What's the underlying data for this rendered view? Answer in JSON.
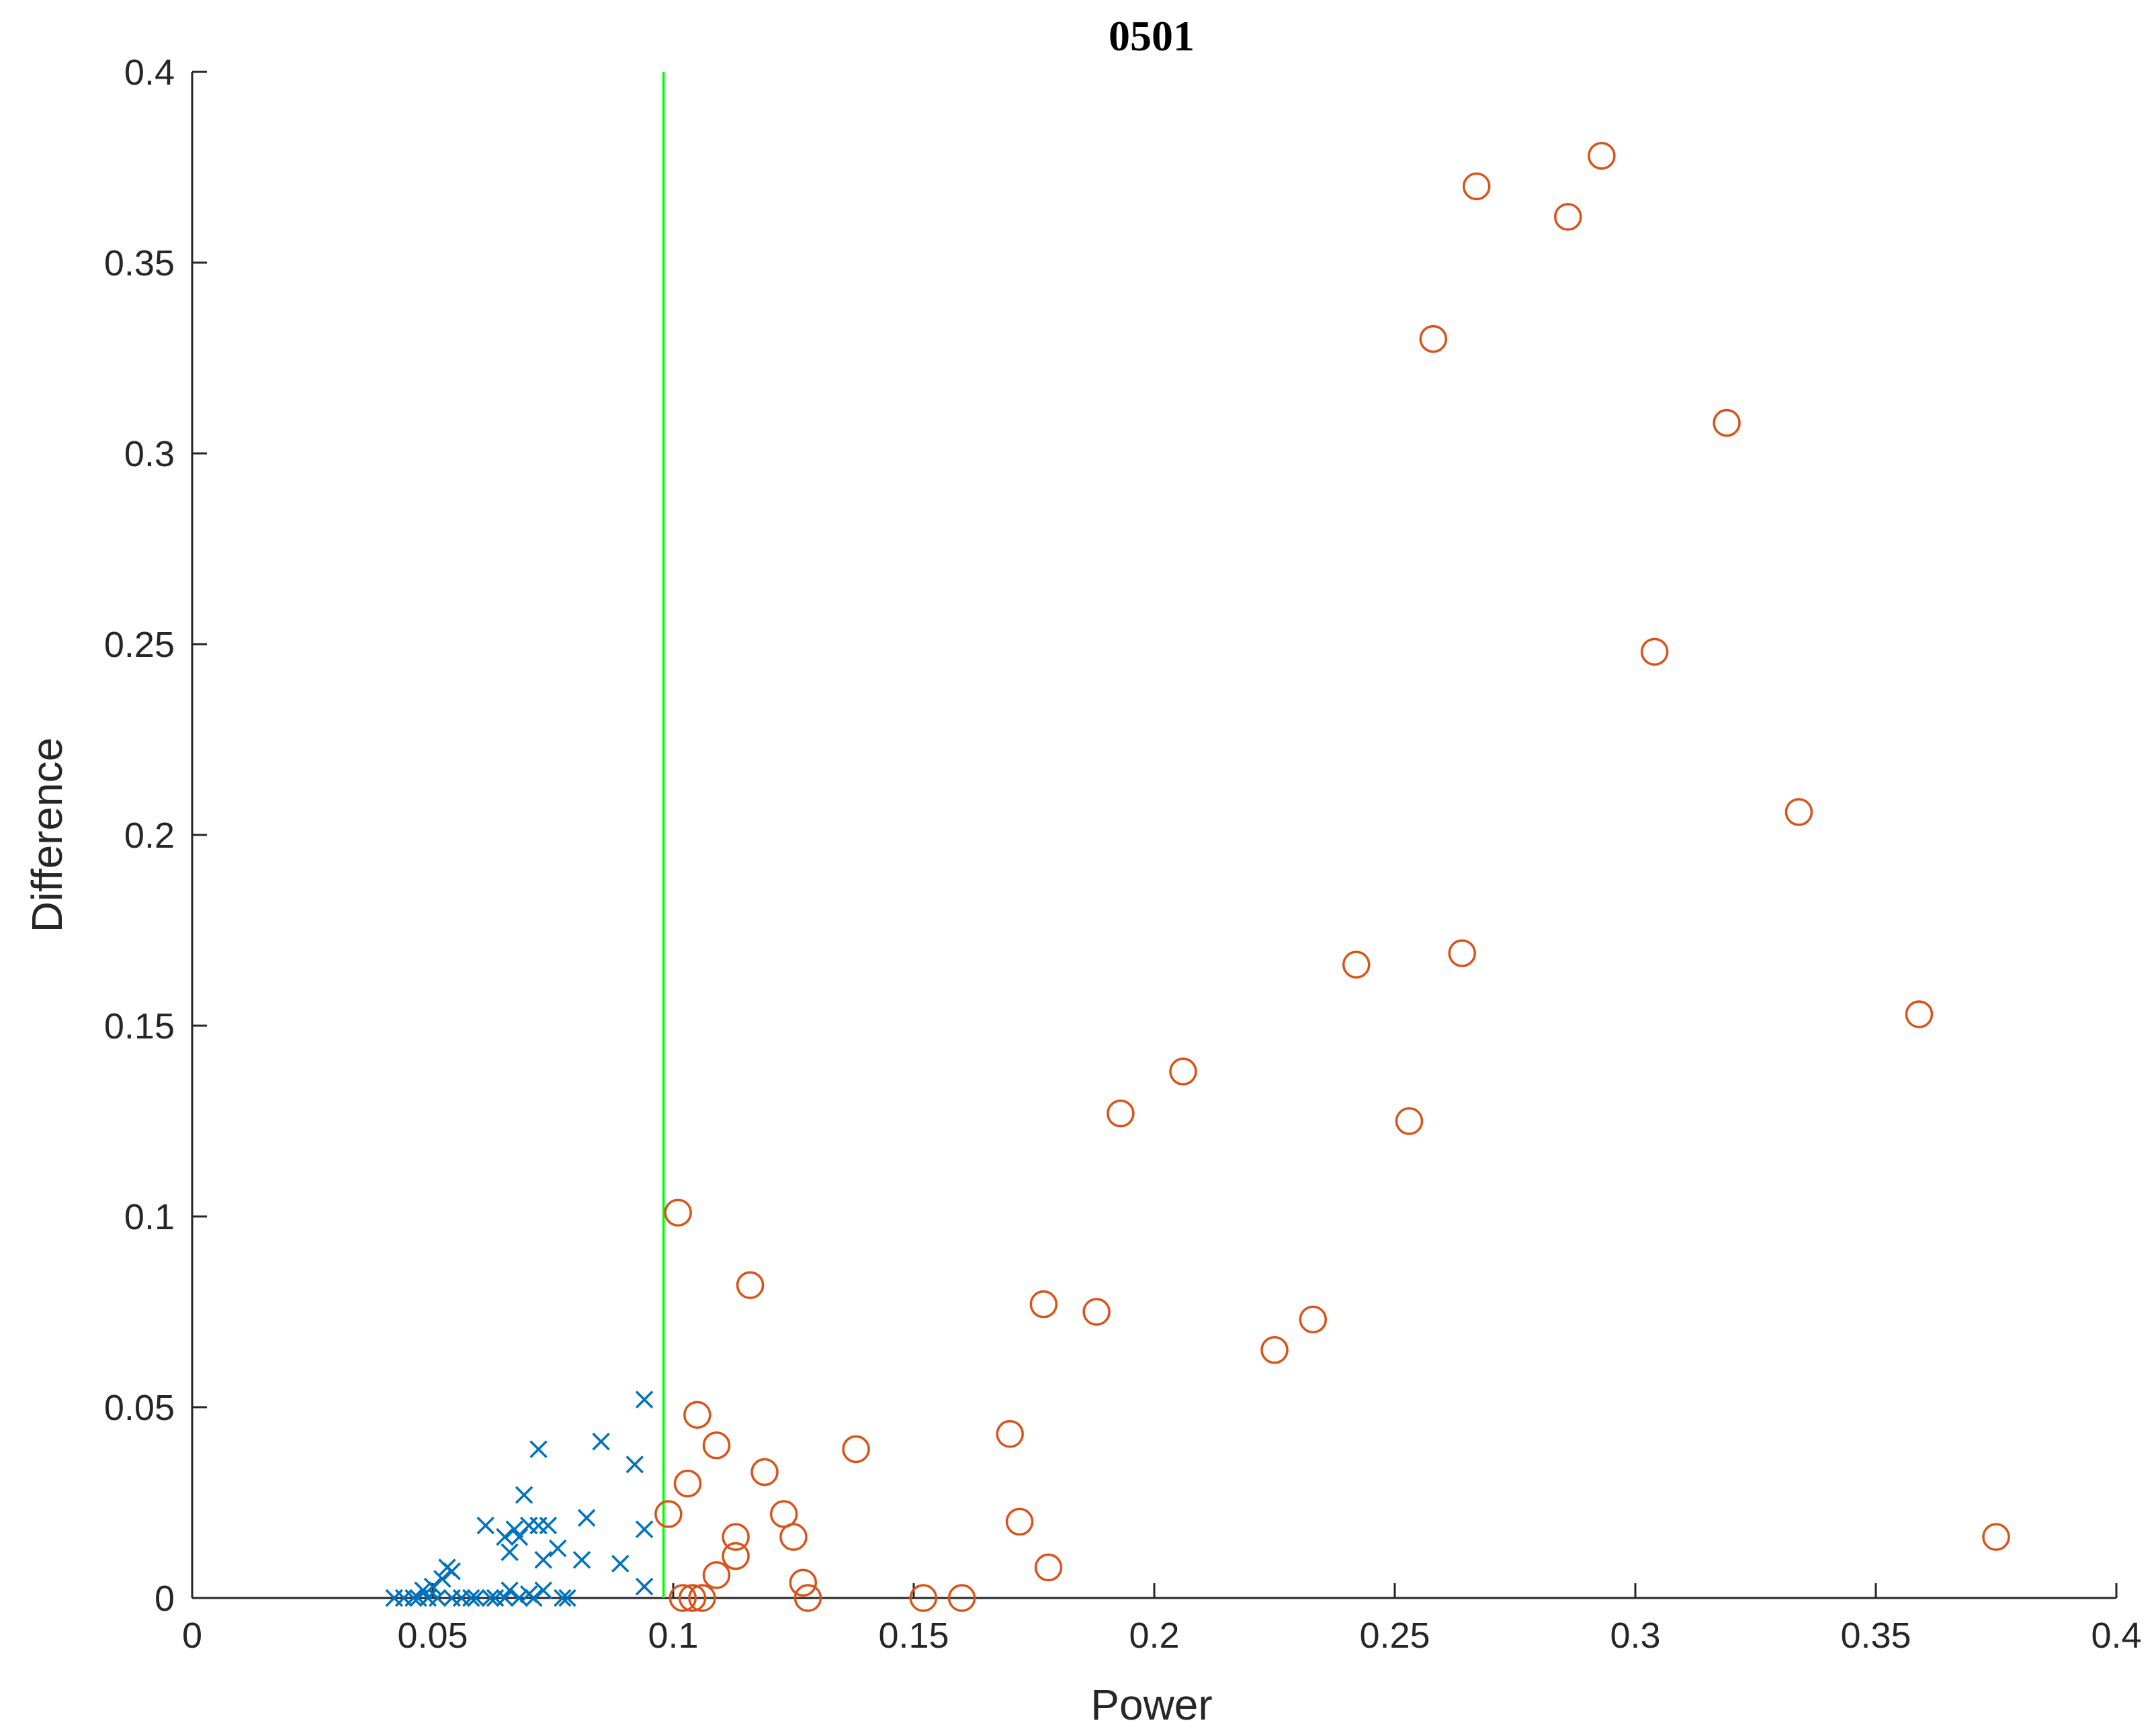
{
  "colors": {
    "axes": "#262626",
    "circle_series": "#D95319",
    "cross_series": "#0072BD",
    "threshold_line": "#00FF00",
    "background": "#FFFFFF"
  },
  "chart_data": {
    "type": "scatter",
    "title": "0501",
    "xlabel": "Power",
    "ylabel": "Difference",
    "xlim": [
      0,
      0.4
    ],
    "ylim": [
      0,
      0.4
    ],
    "xticks": [
      "0",
      "0.05",
      "0.1",
      "0.15",
      "0.2",
      "0.25",
      "0.3",
      "0.35",
      "0.4"
    ],
    "yticks": [
      "0",
      "0.05",
      "0.1",
      "0.15",
      "0.2",
      "0.25",
      "0.3",
      "0.35",
      "0.4"
    ],
    "grid": false,
    "legend": "none",
    "vline": {
      "x": 0.098,
      "color": "#00FF00"
    },
    "series": [
      {
        "marker": "circle",
        "color": "#D95319",
        "points": [
          [
            0.293,
            0.378
          ],
          [
            0.267,
            0.37
          ],
          [
            0.286,
            0.362
          ],
          [
            0.258,
            0.33
          ],
          [
            0.319,
            0.308
          ],
          [
            0.304,
            0.248
          ],
          [
            0.334,
            0.206
          ],
          [
            0.264,
            0.169
          ],
          [
            0.242,
            0.166
          ],
          [
            0.359,
            0.153
          ],
          [
            0.206,
            0.138
          ],
          [
            0.193,
            0.127
          ],
          [
            0.253,
            0.125
          ],
          [
            0.101,
            0.101
          ],
          [
            0.116,
            0.082
          ],
          [
            0.177,
            0.077
          ],
          [
            0.188,
            0.075
          ],
          [
            0.233,
            0.073
          ],
          [
            0.225,
            0.065
          ],
          [
            0.105,
            0.048
          ],
          [
            0.17,
            0.043
          ],
          [
            0.109,
            0.04
          ],
          [
            0.138,
            0.039
          ],
          [
            0.119,
            0.033
          ],
          [
            0.103,
            0.03
          ],
          [
            0.099,
            0.022
          ],
          [
            0.123,
            0.022
          ],
          [
            0.172,
            0.02
          ],
          [
            0.113,
            0.016
          ],
          [
            0.125,
            0.016
          ],
          [
            0.375,
            0.016
          ],
          [
            0.113,
            0.011
          ],
          [
            0.178,
            0.008
          ],
          [
            0.109,
            0.006
          ],
          [
            0.127,
            0.004
          ],
          [
            0.102,
            0.0
          ],
          [
            0.104,
            0.0
          ],
          [
            0.106,
            0.0
          ],
          [
            0.128,
            0.0
          ],
          [
            0.152,
            0.0
          ],
          [
            0.16,
            0.0
          ]
        ]
      },
      {
        "marker": "cross",
        "color": "#0072BD",
        "points": [
          [
            0.094,
            0.052
          ],
          [
            0.085,
            0.041
          ],
          [
            0.072,
            0.039
          ],
          [
            0.092,
            0.035
          ],
          [
            0.069,
            0.027
          ],
          [
            0.082,
            0.021
          ],
          [
            0.061,
            0.019
          ],
          [
            0.07,
            0.019
          ],
          [
            0.072,
            0.019
          ],
          [
            0.074,
            0.019
          ],
          [
            0.067,
            0.018
          ],
          [
            0.094,
            0.018
          ],
          [
            0.065,
            0.016
          ],
          [
            0.068,
            0.016
          ],
          [
            0.076,
            0.013
          ],
          [
            0.066,
            0.012
          ],
          [
            0.073,
            0.01
          ],
          [
            0.081,
            0.01
          ],
          [
            0.089,
            0.009
          ],
          [
            0.053,
            0.008
          ],
          [
            0.054,
            0.007
          ],
          [
            0.052,
            0.005
          ],
          [
            0.05,
            0.003
          ],
          [
            0.048,
            0.002
          ],
          [
            0.094,
            0.003
          ],
          [
            0.066,
            0.002
          ],
          [
            0.07,
            0.001
          ],
          [
            0.073,
            0.002
          ],
          [
            0.042,
            0.0
          ],
          [
            0.044,
            0.0
          ],
          [
            0.046,
            0.0
          ],
          [
            0.047,
            0.0
          ],
          [
            0.049,
            0.0
          ],
          [
            0.051,
            0.0
          ],
          [
            0.054,
            0.0
          ],
          [
            0.056,
            0.0
          ],
          [
            0.058,
            0.0
          ],
          [
            0.059,
            0.0
          ],
          [
            0.062,
            0.0
          ],
          [
            0.063,
            0.0
          ],
          [
            0.065,
            0.0
          ],
          [
            0.068,
            0.0
          ],
          [
            0.071,
            0.0
          ],
          [
            0.077,
            0.0
          ],
          [
            0.078,
            0.0
          ]
        ]
      }
    ]
  }
}
